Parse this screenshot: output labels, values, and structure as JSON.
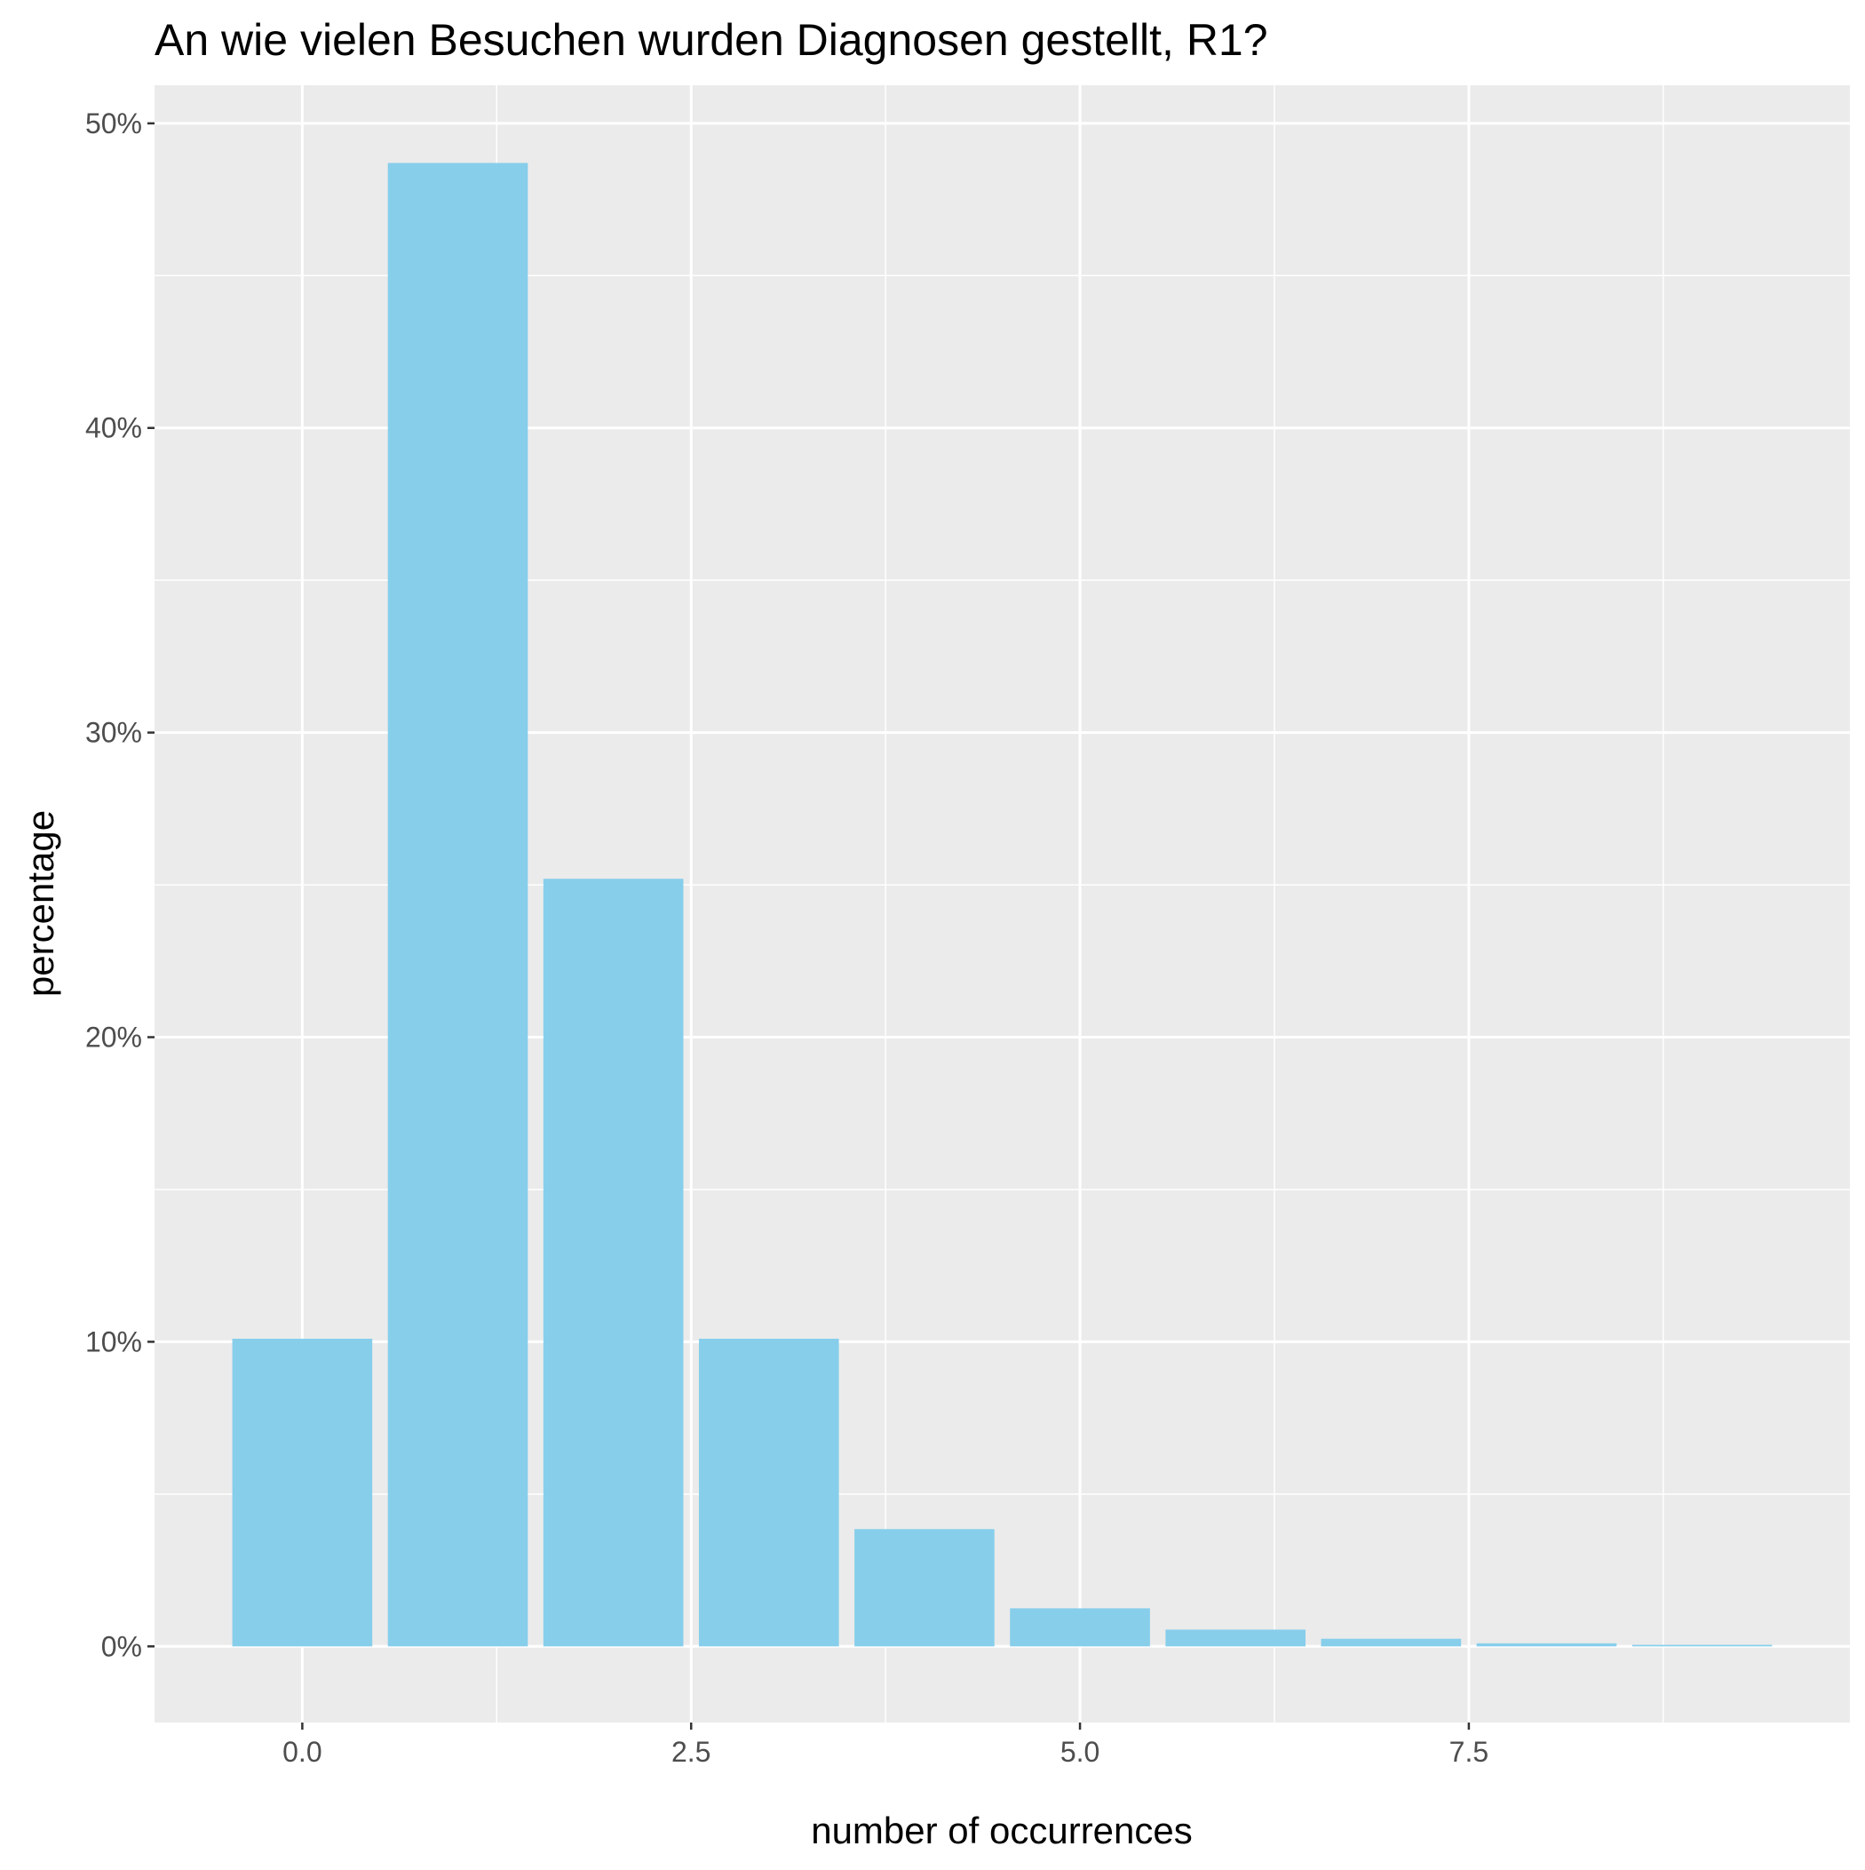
{
  "chart_data": {
    "type": "bar",
    "title": "An wie vielen Besuchen wurden Diagnosen gestellt, R1?",
    "xlabel": "number of occurrences",
    "ylabel": "percentage",
    "x": [
      0,
      1,
      2,
      3,
      4,
      5,
      6,
      7,
      8,
      9
    ],
    "values": [
      10.1,
      48.7,
      25.2,
      10.1,
      3.85,
      1.25,
      0.55,
      0.25,
      0.1,
      0.05
    ],
    "x_ticks": [
      0,
      2.5,
      5,
      7.5
    ],
    "x_tick_labels": [
      "0.0",
      "2.5",
      "5.0",
      "7.5"
    ],
    "y_ticks": [
      0,
      10,
      20,
      30,
      40,
      50
    ],
    "y_tick_labels": [
      "0%",
      "10%",
      "20%",
      "30%",
      "40%",
      "50%"
    ],
    "xlim": [
      -0.95,
      9.95
    ],
    "ylim": [
      -2.5,
      51.25
    ],
    "grid": true,
    "legend": "none",
    "colors": {
      "bar": "#87CEEB",
      "panel_background": "#EBEBEB",
      "grid": "#FFFFFF",
      "tick_text": "#4D4D4D",
      "title_text": "#000000"
    }
  }
}
